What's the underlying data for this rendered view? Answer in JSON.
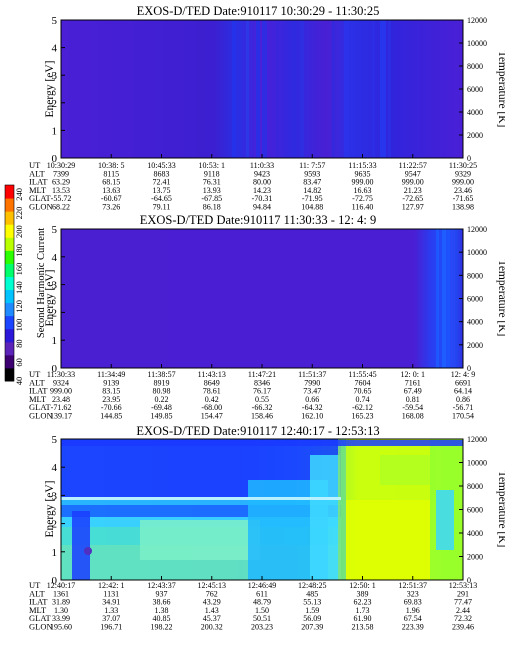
{
  "colorbar": {
    "label": "Second Harmonic Current",
    "ticks": [
      40,
      60,
      80,
      100,
      120,
      140,
      160,
      180,
      200,
      220,
      240
    ],
    "range": [
      40,
      250
    ],
    "colors": [
      "#000000",
      "#3c0070",
      "#5b23b8",
      "#2c18d8",
      "#1b45ff",
      "#1f8bff",
      "#00c3ff",
      "#00ffd0",
      "#00ff6a",
      "#2cff00",
      "#b9ff00",
      "#ffff00",
      "#ffc000",
      "#ff7300",
      "#ff0000"
    ]
  },
  "chart_data": [
    {
      "type": "heatmap",
      "title": "EXOS-D/TED   Date:910117  10:30:29 - 11:30:25",
      "ylabel": "Energy [eV]",
      "ylabel_right": "Temperature [K]",
      "ylim": [
        0,
        5
      ],
      "yticks": [
        0,
        1,
        2,
        3,
        4,
        5
      ],
      "ylim_right": [
        0,
        12000
      ],
      "yticks_right": [
        0,
        2000,
        4000,
        6000,
        8000,
        10000,
        12000
      ],
      "row_labels": [
        "UT",
        "ALT",
        "ILAT",
        "MLT",
        "GLAT",
        "GLON"
      ],
      "columns": [
        [
          "10:30:29",
          "7399",
          "63.29",
          "13.53",
          "-55.72",
          "68.22"
        ],
        [
          "10:38: 5",
          "8115",
          "68.15",
          "13.63",
          "-60.67",
          "73.26"
        ],
        [
          "10:45:33",
          "8683",
          "72.41",
          "13.75",
          "-64.65",
          "79.11"
        ],
        [
          "10:53: 1",
          "9118",
          "76.31",
          "13.93",
          "-67.85",
          "86.18"
        ],
        [
          "11:0:33",
          "9423",
          "80.00",
          "14.23",
          "-70.31",
          "94.84"
        ],
        [
          "11: 7:57",
          "9593",
          "83.47",
          "14.82",
          "-71.95",
          "104.88"
        ],
        [
          "11:15:33",
          "9635",
          "999.00",
          "16.63",
          "-72.75",
          "116.40"
        ],
        [
          "11:22:57",
          "9547",
          "999.00",
          "21.23",
          "-72.65",
          "127.97"
        ],
        [
          "11:30:25",
          "9329",
          "999.00",
          "23.46",
          "-71.65",
          "138.98"
        ]
      ]
    },
    {
      "type": "heatmap",
      "title": "EXOS-D/TED   Date:910117  11:30:33 - 12: 4: 9",
      "ylabel": "Energy [eV]",
      "ylabel_right": "Temperature [K]",
      "ylim": [
        0,
        5
      ],
      "yticks": [
        0,
        1,
        2,
        3,
        4,
        5
      ],
      "ylim_right": [
        0,
        12000
      ],
      "yticks_right": [
        0,
        2000,
        4000,
        6000,
        8000,
        10000,
        12000
      ],
      "row_labels": [
        "UT",
        "ALT",
        "ILAT",
        "MLT",
        "GLAT",
        "GLON"
      ],
      "columns": [
        [
          "11:30:33",
          "9324",
          "999.00",
          "23.48",
          "-71.62",
          "139.17"
        ],
        [
          "11:34:49",
          "9139",
          "83.15",
          "23.95",
          "-70.66",
          "144.85"
        ],
        [
          "11:38:57",
          "8919",
          "80.98",
          "0.22",
          "-69.48",
          "149.85"
        ],
        [
          "11:43:13",
          "8649",
          "78.61",
          "0.42",
          "-68.00",
          "154.47"
        ],
        [
          "11:47:21",
          "8346",
          "76.17",
          "0.55",
          "-66.32",
          "158.46"
        ],
        [
          "11:51:37",
          "7990",
          "73.47",
          "0.66",
          "-64.32",
          "162.10"
        ],
        [
          "11:55:45",
          "7604",
          "70.65",
          "0.74",
          "-62.12",
          "165.23"
        ],
        [
          "12: 0: 1",
          "7161",
          "67.49",
          "0.81",
          "-59.54",
          "168.08"
        ],
        [
          "12: 4: 9",
          "6691",
          "64.14",
          "0.86",
          "-56.71",
          "170.54"
        ]
      ]
    },
    {
      "type": "heatmap",
      "title": "EXOS-D/TED   Date:910117  12:40:17 - 12:53:13",
      "ylabel": "Energy [eV]",
      "ylabel_right": "Temperature [K]",
      "ylim": [
        0,
        5
      ],
      "yticks": [
        0,
        1,
        2,
        3,
        4,
        5
      ],
      "ylim_right": [
        0,
        12000
      ],
      "yticks_right": [
        0,
        2000,
        4000,
        6000,
        8000,
        10000,
        12000
      ],
      "row_labels": [
        "UT",
        "ALT",
        "ILAT",
        "MLT",
        "GLAT",
        "GLON"
      ],
      "columns": [
        [
          "12:40:17",
          "1361",
          "31.89",
          "1.30",
          "33.99",
          "195.60"
        ],
        [
          "12:42: 1",
          "1131",
          "34.91",
          "1.33",
          "37.07",
          "196.71"
        ],
        [
          "12:43:37",
          "937",
          "38.66",
          "1.38",
          "40.85",
          "198.22"
        ],
        [
          "12:45:13",
          "762",
          "43.29",
          "1.43",
          "45.37",
          "200.32"
        ],
        [
          "12:46:49",
          "611",
          "48.79",
          "1.50",
          "50.51",
          "203.23"
        ],
        [
          "12:48:25",
          "485",
          "55.13",
          "1.59",
          "56.09",
          "207.39"
        ],
        [
          "12:50: 1",
          "389",
          "62.23",
          "1.73",
          "61.90",
          "213.58"
        ],
        [
          "12:51:37",
          "323",
          "69.83",
          "1.96",
          "67.54",
          "223.39"
        ],
        [
          "12:53:13",
          "291",
          "77.47",
          "2.44",
          "72.32",
          "239.46"
        ]
      ]
    }
  ]
}
